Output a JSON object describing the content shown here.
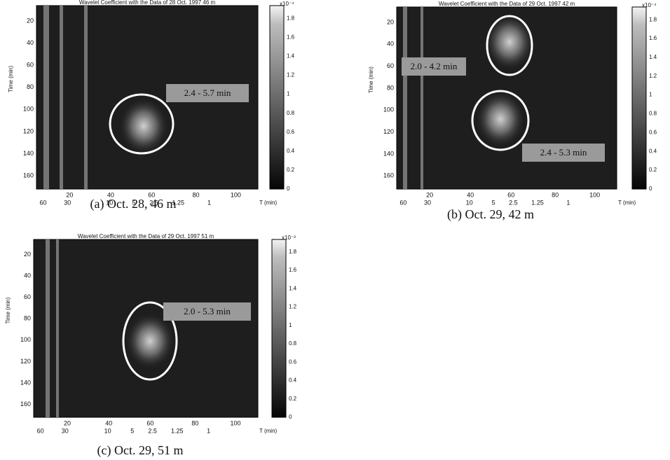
{
  "panels": [
    {
      "title": "Wavelet Coefficient  with the Data of 28 Oct. 1997 46 m",
      "ylabel": "Time (min)",
      "yticks": [
        "20",
        "40",
        "60",
        "80",
        "100",
        "120",
        "140",
        "160"
      ],
      "xticks_top": [
        "20",
        "40",
        "60",
        "80",
        "100"
      ],
      "xticks_bottom": [
        "60",
        "30",
        "10",
        "5",
        "2.5",
        "1.25",
        "1"
      ],
      "xunit": "T (min)",
      "colorbar_scale": "x10⁻⁴",
      "colorbar_ticks": [
        "1.8",
        "1.6",
        "1.4",
        "1.2",
        "1",
        "0.8",
        "0.6",
        "0.4",
        "0.2",
        "0"
      ],
      "annotations": [
        "2.4 - 5.7 min"
      ],
      "caption": "(a) Oct. 28,  46 m"
    },
    {
      "title": "Wavelet Coefficient  with the Data of 29 Oct. 1997 42 m",
      "ylabel": "Time (min)",
      "yticks": [
        "20",
        "40",
        "60",
        "80",
        "100",
        "120",
        "140",
        "160"
      ],
      "xticks_top": [
        "20",
        "40",
        "60",
        "80",
        "100"
      ],
      "xticks_bottom": [
        "60",
        "30",
        "10",
        "5",
        "2.5",
        "1.25",
        "1"
      ],
      "xunit": "T (min)",
      "colorbar_scale": "x10⁻⁴",
      "colorbar_ticks": [
        "1.8",
        "1.6",
        "1.4",
        "1.2",
        "1",
        "0.8",
        "0.6",
        "0.4",
        "0.2",
        "0"
      ],
      "annotations": [
        "2.0 - 4.2 min",
        "2.4 - 5.3 min"
      ],
      "caption": "(b) Oct. 29, 42 m"
    },
    {
      "title": "Wavelet Coefficient  with the Data of 29 Oct. 1997 51 m",
      "ylabel": "Time (min)",
      "yticks": [
        "20",
        "40",
        "60",
        "80",
        "100",
        "120",
        "140",
        "160"
      ],
      "xticks_top": [
        "20",
        "40",
        "60",
        "80",
        "100"
      ],
      "xticks_bottom": [
        "60",
        "30",
        "10",
        "5",
        "2.5",
        "1.25",
        "1"
      ],
      "xunit": "T (min)",
      "colorbar_scale": "x10⁻³",
      "colorbar_ticks": [
        "1.8",
        "1.6",
        "1.4",
        "1.2",
        "1",
        "0.8",
        "0.6",
        "0.4",
        "0.2",
        "0"
      ],
      "annotations": [
        "2.0 - 5.3 min"
      ],
      "caption": "(c) Oct. 29,  51 m"
    }
  ]
}
